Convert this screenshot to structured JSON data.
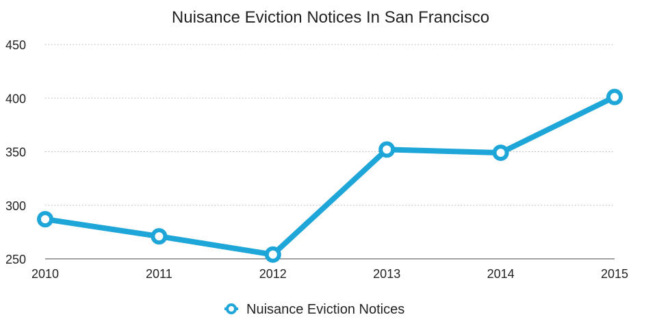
{
  "chart_data": {
    "type": "line",
    "title": "Nuisance Eviction Notices In San Francisco",
    "xlabel": "",
    "ylabel": "",
    "x": [
      "2010",
      "2011",
      "2012",
      "2013",
      "2014",
      "2015"
    ],
    "series": [
      {
        "name": "Nuisance Eviction Notices",
        "values": [
          287,
          271,
          254,
          352,
          349,
          401
        ],
        "color": "#1FA6D9"
      }
    ],
    "ylim": [
      250,
      450
    ],
    "yticks": [
      250,
      300,
      350,
      400,
      450
    ],
    "grid": "horizontal-dotted",
    "legend": "bottom-center",
    "markers": "hollow-circle"
  }
}
